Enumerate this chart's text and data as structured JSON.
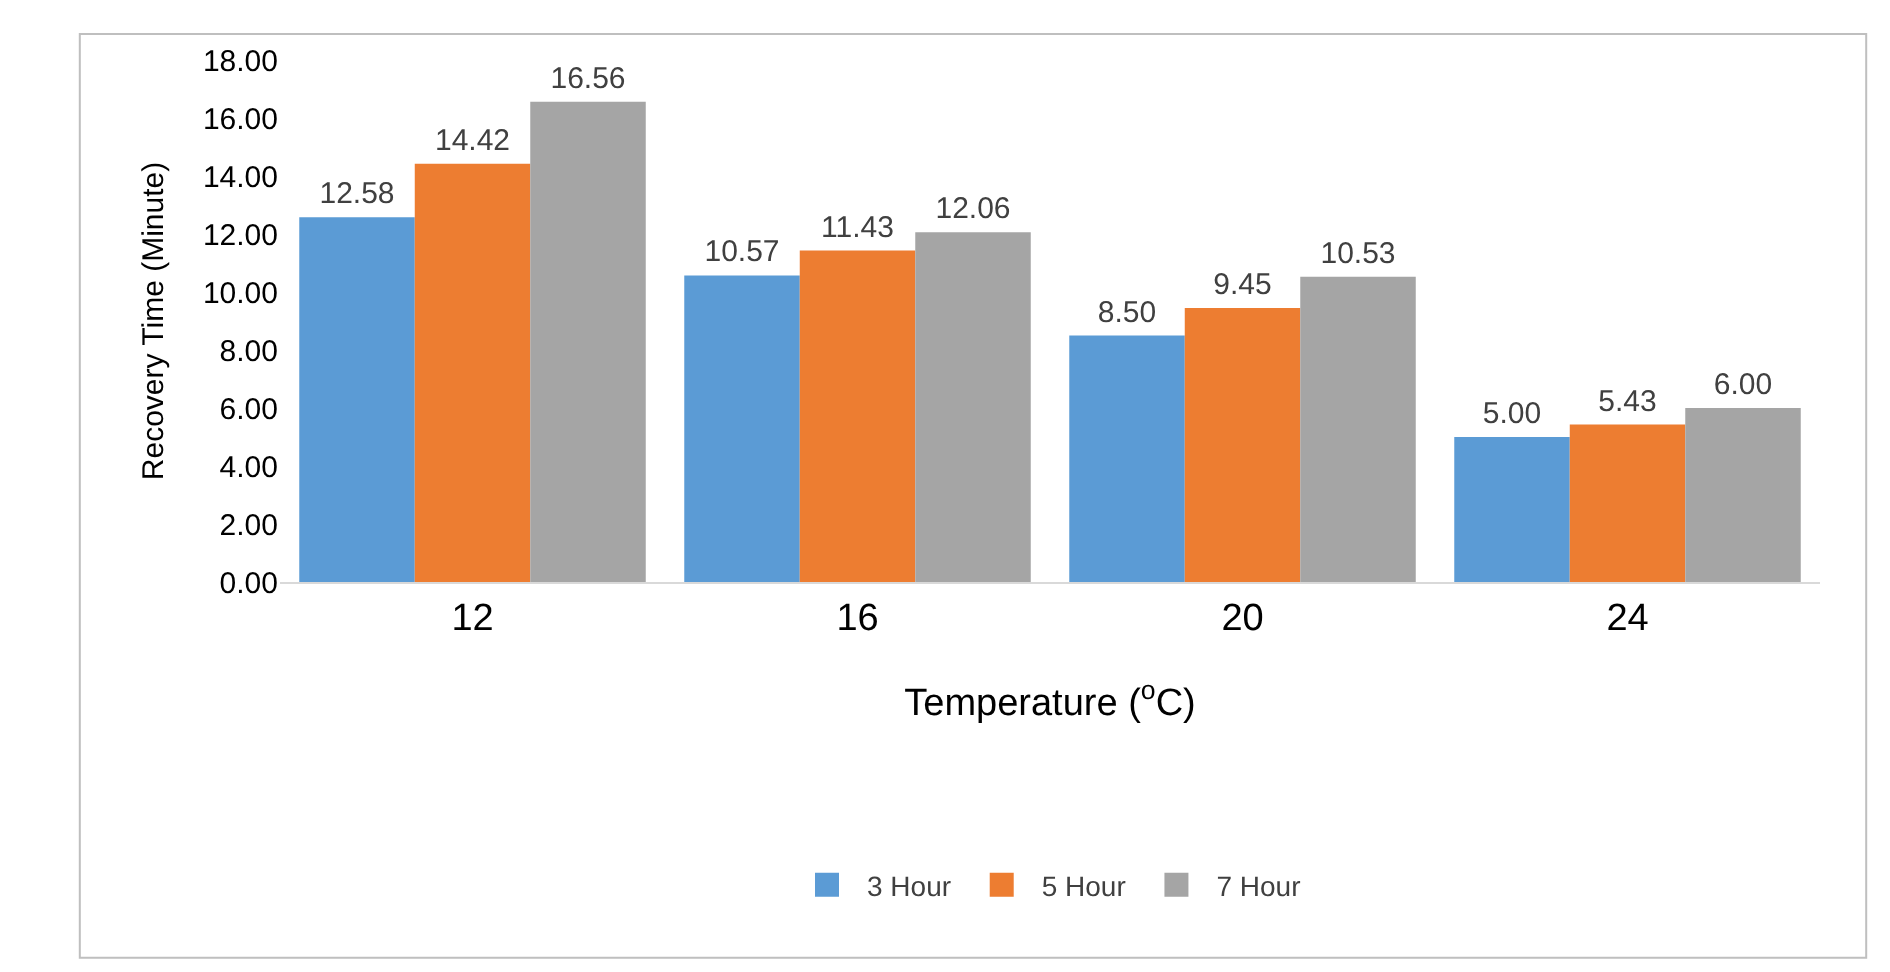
{
  "chart_data": {
    "type": "bar",
    "xlabel": "Temperature ($^{o}$C)",
    "ylabel": "Recovery Time (Minute)",
    "categories": [
      "12",
      "16",
      "20",
      "24"
    ],
    "series": [
      {
        "name": "3 Hour",
        "color": "#5b9bd5",
        "values": [
          12.58,
          10.57,
          8.5,
          5.0
        ],
        "value_labels": [
          "12.58",
          "10.57",
          "8.50",
          "5.00"
        ]
      },
      {
        "name": "5 Hour",
        "color": "#ed7d31",
        "values": [
          14.42,
          11.43,
          9.45,
          5.43
        ],
        "value_labels": [
          "14.42",
          "11.43",
          "9.45",
          "5.43"
        ]
      },
      {
        "name": "7 Hour",
        "color": "#a5a5a5",
        "values": [
          16.56,
          12.06,
          10.53,
          6.0
        ],
        "value_labels": [
          "16.56",
          "12.06",
          "10.53",
          "6.00"
        ]
      }
    ],
    "ylim": [
      0,
      18
    ],
    "yticks": [
      {
        "value": 0,
        "label": "0.00"
      },
      {
        "value": 2,
        "label": "2.00"
      },
      {
        "value": 4,
        "label": "4.00"
      },
      {
        "value": 6,
        "label": "6.00"
      },
      {
        "value": 8,
        "label": "8.00"
      },
      {
        "value": 10,
        "label": "10.00"
      },
      {
        "value": 12,
        "label": "12.00"
      },
      {
        "value": 14,
        "label": "14.00"
      },
      {
        "value": 16,
        "label": "16.00"
      },
      {
        "value": 18,
        "label": "18.00"
      }
    ],
    "grid": false,
    "legend": "bottom"
  }
}
